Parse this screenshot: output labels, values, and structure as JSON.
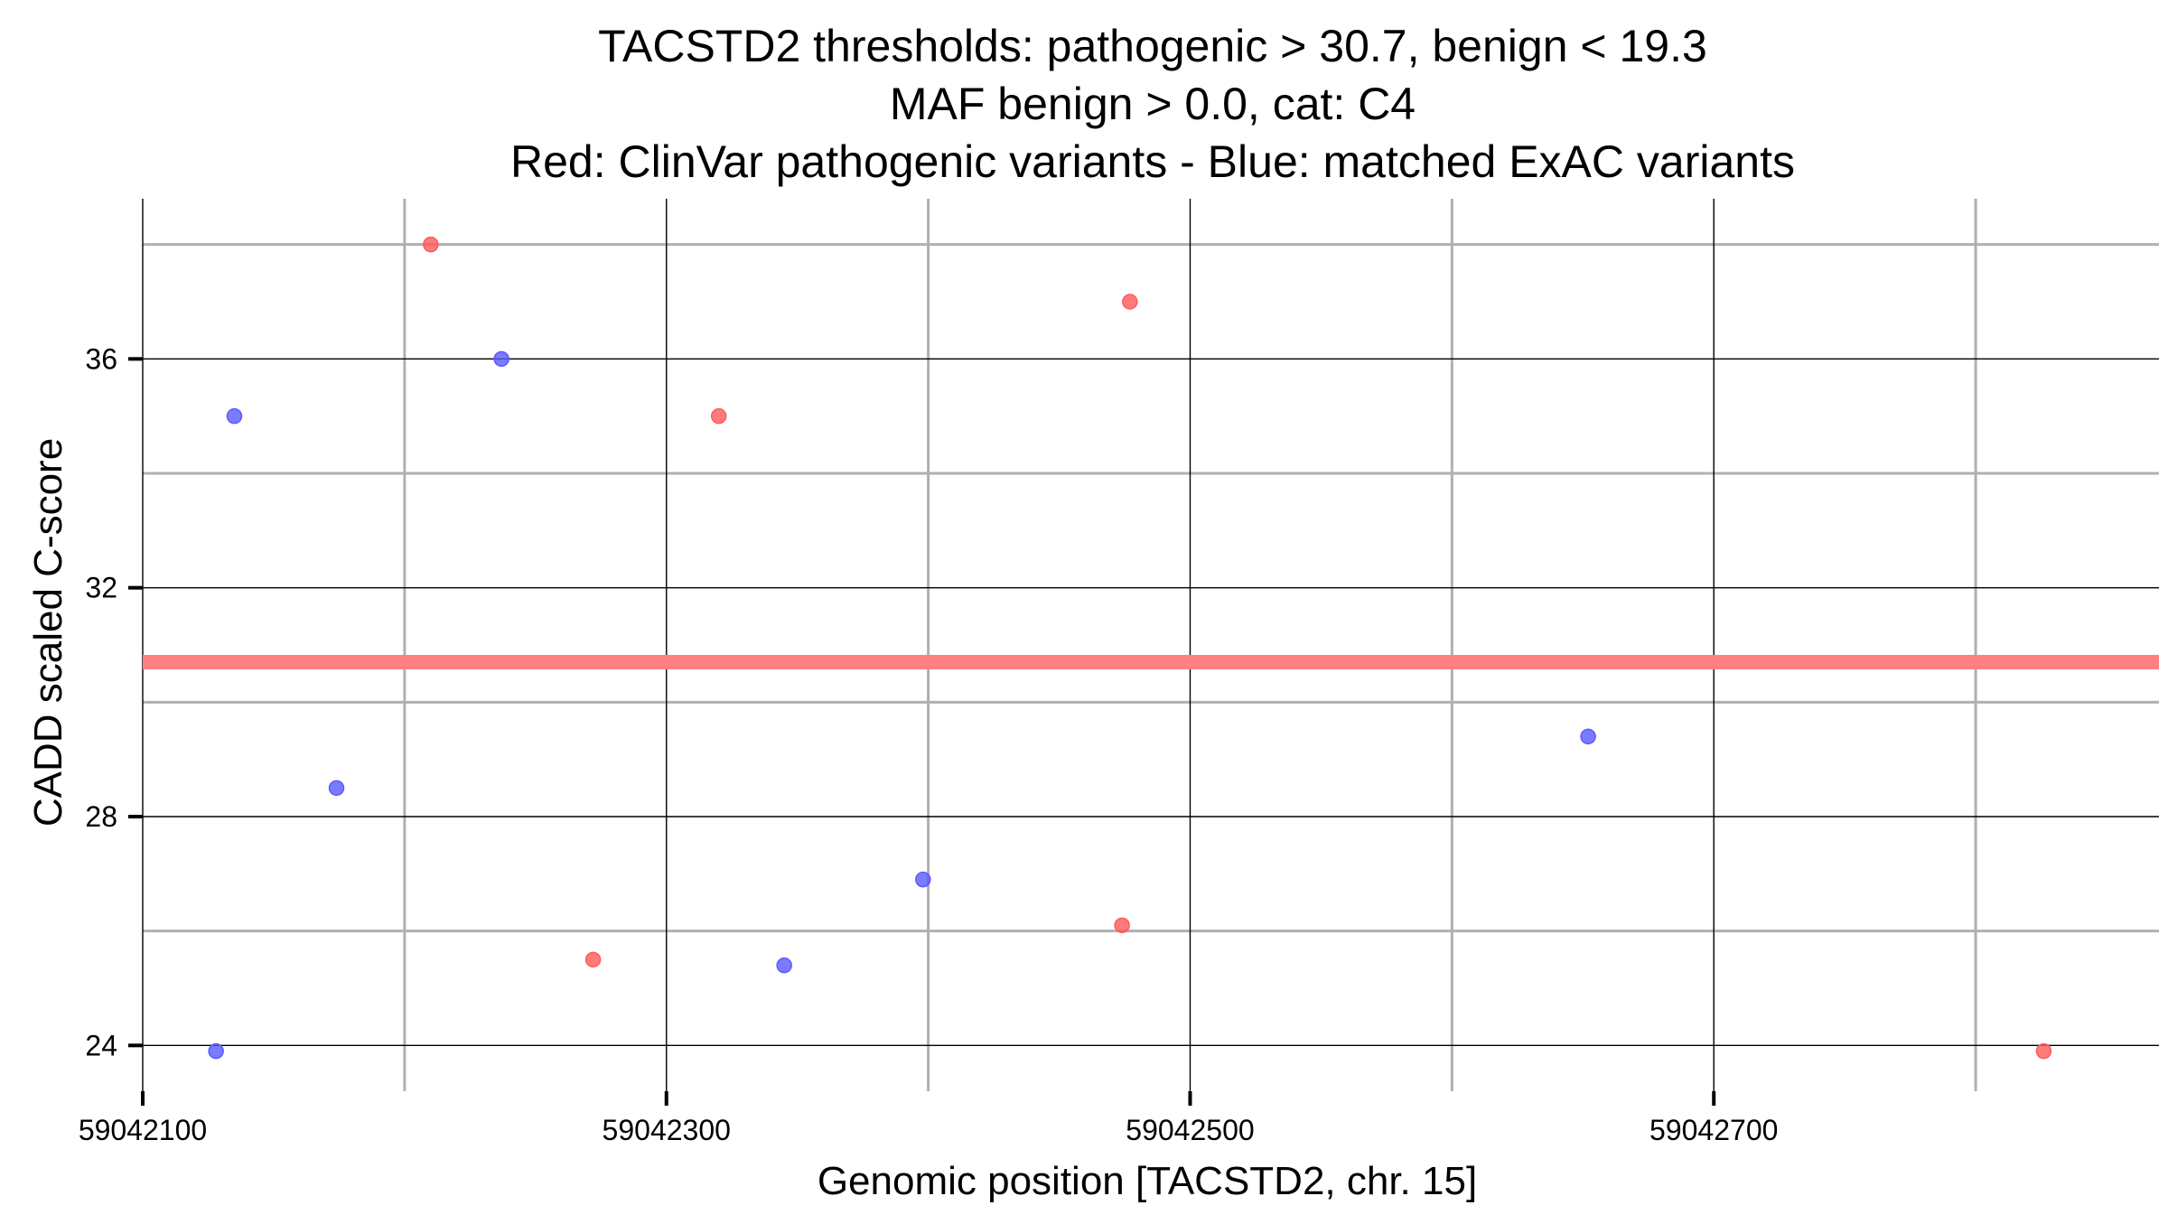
{
  "chart_data": {
    "type": "scatter",
    "title_lines": [
      "TACSTD2 thresholds: pathogenic > 30.7, benign < 19.3",
      "MAF benign > 0.0, cat: C4",
      "Red: ClinVar pathogenic variants - Blue: matched ExAC variants"
    ],
    "xlabel": "Genomic position [TACSTD2, chr. 15]",
    "ylabel": "CADD scaled C-score",
    "xlim": [
      59042100,
      59042870
    ],
    "ylim": [
      23.2,
      38.8
    ],
    "x_major_ticks": [
      59042100,
      59042300,
      59042500,
      59042700
    ],
    "x_tick_labels": [
      "59042100",
      "59042300",
      "59042500",
      "59042700"
    ],
    "x_minor_ticks": [
      59042200,
      59042400,
      59042600,
      59042800
    ],
    "y_major_ticks": [
      24,
      28,
      32,
      36
    ],
    "y_tick_labels": [
      "24",
      "28",
      "32",
      "36"
    ],
    "y_minor_ticks": [
      26,
      30,
      34,
      38
    ],
    "grid": true,
    "threshold_line": {
      "name": "pathogenic threshold",
      "y": 30.7,
      "color": "#ff8080"
    },
    "series": [
      {
        "name": "ClinVar pathogenic variants",
        "color": "#ff5a5a",
        "points": [
          {
            "x": 59042210,
            "y": 38.0
          },
          {
            "x": 59042272,
            "y": 25.5
          },
          {
            "x": 59042320,
            "y": 35.0
          },
          {
            "x": 59042474,
            "y": 26.1
          },
          {
            "x": 59042477,
            "y": 37.0
          },
          {
            "x": 59042826,
            "y": 23.9
          }
        ]
      },
      {
        "name": "matched ExAC variants",
        "color": "#5a5aff",
        "points": [
          {
            "x": 59042128,
            "y": 23.9
          },
          {
            "x": 59042135,
            "y": 35.0
          },
          {
            "x": 59042174,
            "y": 28.5
          },
          {
            "x": 59042237,
            "y": 36.0
          },
          {
            "x": 59042345,
            "y": 25.4
          },
          {
            "x": 59042398,
            "y": 26.9
          },
          {
            "x": 59042652,
            "y": 29.4
          }
        ]
      }
    ]
  }
}
